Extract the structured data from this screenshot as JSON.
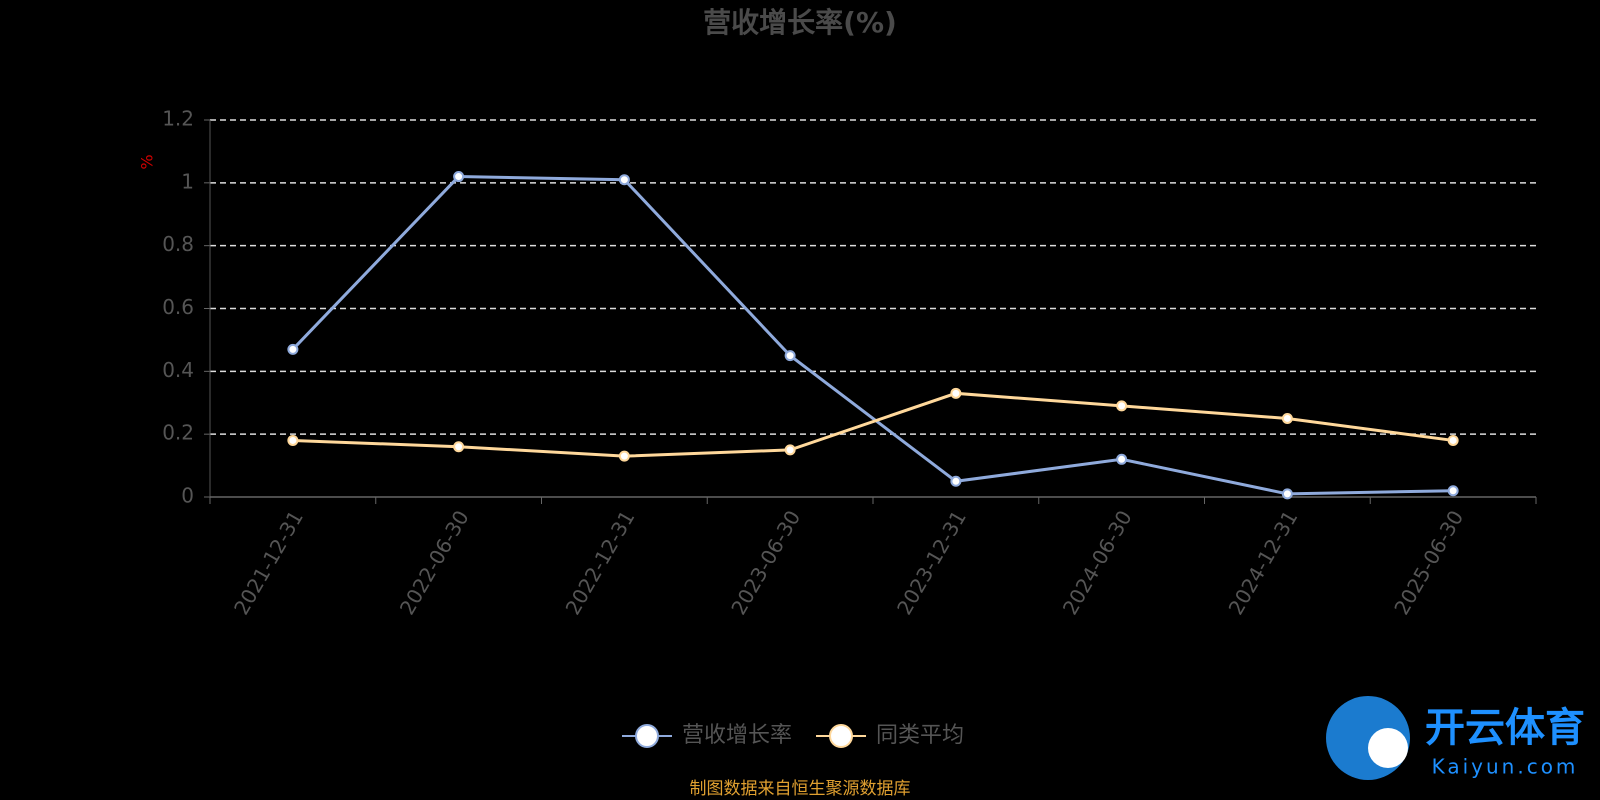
{
  "chart_data": {
    "type": "line",
    "title": "营收增长率(%)",
    "y_label": "%",
    "categories": [
      "2021-12-31",
      "2022-06-30",
      "2022-12-31",
      "2023-06-30",
      "2023-12-31",
      "2024-06-30",
      "2024-12-31",
      "2025-06-30"
    ],
    "series": [
      {
        "name": "营收增长率",
        "color": "#8faadc",
        "values": [
          0.47,
          1.02,
          1.01,
          0.45,
          0.05,
          0.12,
          0.01,
          0.02
        ]
      },
      {
        "name": "同类平均",
        "color": "#ffd89b",
        "values": [
          0.18,
          0.16,
          0.13,
          0.15,
          0.33,
          0.29,
          0.25,
          0.18
        ]
      }
    ],
    "ylim": [
      0,
      1.2
    ],
    "yticks": [
      0,
      0.2,
      0.4,
      0.6,
      0.8,
      1,
      1.2
    ],
    "grid": true,
    "legend": "bottom",
    "source": "制图数据来自恒生聚源数据库",
    "watermark": {
      "brand": "开云体育",
      "site": "Kaiyun.com"
    }
  }
}
